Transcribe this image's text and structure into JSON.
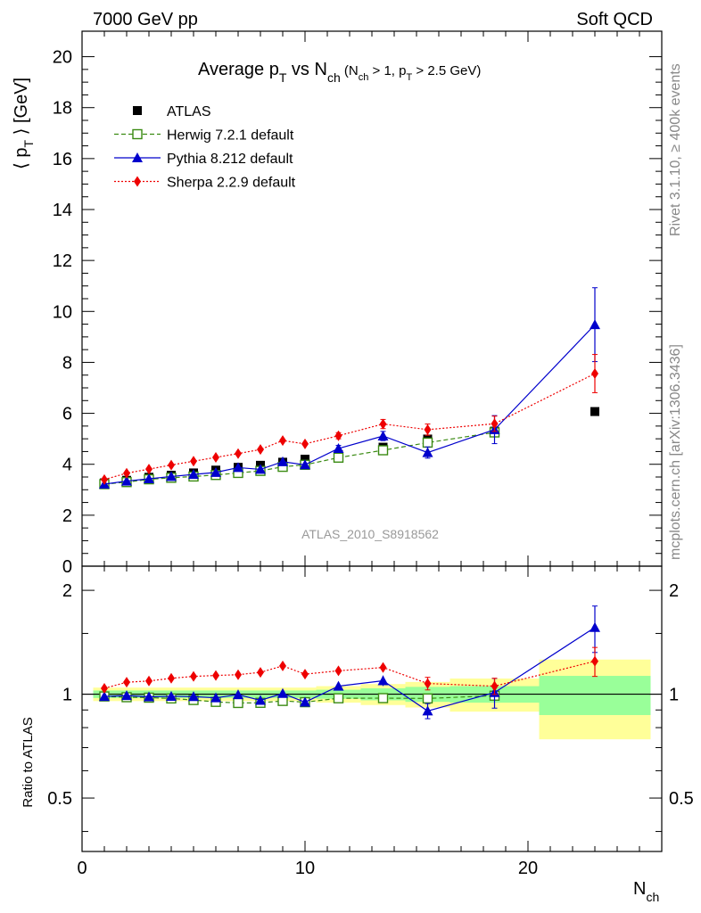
{
  "header": {
    "left": "7000 GeV pp",
    "right": "Soft QCD"
  },
  "side_labels": {
    "rivet": "Rivet 3.1.10, ≥ 400k events",
    "mcplots": "mcplots.cern.ch [arXiv:1306.3436]"
  },
  "chart_data": [
    {
      "type": "scatter",
      "title": {
        "main_a": "Average p",
        "sub_a": "T",
        "main_b": " vs N",
        "sub_b": "ch",
        "paren_a": " (N",
        "paren_sub_a": "ch",
        "paren_b": " > 1, p",
        "paren_sub_b": "T",
        "paren_c": " > 2.5 GeV)"
      },
      "ylabel": {
        "pre": "⟨ p",
        "sub": "T",
        "post": " ⟩  [GeV]"
      },
      "xlabel": {
        "main": "N",
        "sub": "ch"
      },
      "watermark": "ATLAS_2010_S8918562",
      "xlim": [
        0,
        26
      ],
      "ylim": [
        0,
        21
      ],
      "xticks": [
        0,
        10,
        20
      ],
      "yticks": [
        0,
        2,
        4,
        6,
        8,
        10,
        12,
        14,
        16,
        18,
        20
      ],
      "legend_position": "top-left",
      "series": [
        {
          "name": "ATLAS",
          "color": "#000000",
          "marker": "square-filled",
          "line": "none",
          "x": [
            1,
            2,
            3,
            4,
            5,
            6,
            7,
            8,
            9,
            10,
            11.5,
            13.5,
            15.5,
            18.5,
            23
          ],
          "y": [
            3.27,
            3.37,
            3.49,
            3.57,
            3.66,
            3.77,
            3.88,
            3.96,
            4.08,
            4.2,
            4.38,
            4.67,
            4.99,
            5.3,
            6.07
          ]
        },
        {
          "name": "Herwig 7.2.1 default",
          "color": "#3a8a12",
          "marker": "square-open",
          "line": "dashed",
          "x": [
            1,
            2,
            3,
            4,
            5,
            6,
            7,
            8,
            9,
            10,
            11.5,
            13.5,
            15.5,
            18.5
          ],
          "y": [
            3.22,
            3.3,
            3.41,
            3.47,
            3.52,
            3.58,
            3.66,
            3.74,
            3.9,
            3.98,
            4.26,
            4.55,
            4.85,
            5.25
          ]
        },
        {
          "name": "Pythia 8.212 default",
          "color": "#0000cc",
          "marker": "triangle",
          "line": "solid",
          "x": [
            1,
            2,
            3,
            4,
            5,
            6,
            7,
            8,
            9,
            10,
            11.5,
            13.5,
            15.5,
            18.5,
            23
          ],
          "y": [
            3.22,
            3.34,
            3.43,
            3.52,
            3.6,
            3.68,
            3.87,
            3.8,
            4.1,
            3.98,
            4.62,
            5.11,
            4.46,
            5.36,
            9.48
          ],
          "err": [
            0.05,
            0.05,
            0.05,
            0.05,
            0.05,
            0.05,
            0.06,
            0.06,
            0.07,
            0.08,
            0.12,
            0.18,
            0.22,
            0.55,
            1.45
          ]
        },
        {
          "name": "Sherpa 2.2.9 default",
          "color": "#ee0000",
          "marker": "diamond",
          "line": "dotted",
          "x": [
            1,
            2,
            3,
            4,
            5,
            6,
            7,
            8,
            9,
            10,
            11.5,
            13.5,
            15.5,
            18.5,
            23
          ],
          "y": [
            3.4,
            3.65,
            3.81,
            3.97,
            4.12,
            4.27,
            4.42,
            4.58,
            4.93,
            4.8,
            5.12,
            5.58,
            5.36,
            5.59,
            7.56
          ],
          "err": [
            0.05,
            0.05,
            0.05,
            0.06,
            0.06,
            0.06,
            0.07,
            0.07,
            0.08,
            0.09,
            0.12,
            0.18,
            0.22,
            0.3,
            0.75
          ]
        }
      ]
    },
    {
      "type": "scatter",
      "ylabel": "Ratio to ATLAS",
      "yscale": "log",
      "xlim": [
        0,
        26
      ],
      "ylim": [
        0.35,
        2.35
      ],
      "yticks": [
        0.5,
        1,
        2
      ],
      "xticks": [
        0,
        10,
        20
      ],
      "bands": [
        {
          "x0": 0.5,
          "x1": 10.5,
          "inner": 0.025,
          "outer": 0.045
        },
        {
          "x0": 10.5,
          "x1": 12.5,
          "inner": 0.03,
          "outer": 0.055
        },
        {
          "x0": 12.5,
          "x1": 14.5,
          "inner": 0.04,
          "outer": 0.07
        },
        {
          "x0": 14.5,
          "x1": 16.5,
          "inner": 0.05,
          "outer": 0.085
        },
        {
          "x0": 16.5,
          "x1": 20.5,
          "inner": 0.055,
          "outer": 0.11
        },
        {
          "x0": 20.5,
          "x1": 25.5,
          "inner": 0.13,
          "outer": 0.26
        }
      ],
      "reference_line": 1,
      "series": [
        {
          "name": "Herwig 7.2.1 default",
          "color": "#3a8a12",
          "marker": "square-open",
          "line": "dashed",
          "x": [
            1,
            2,
            3,
            4,
            5,
            6,
            7,
            8,
            9,
            10,
            11.5,
            13.5,
            15.5,
            18.5
          ],
          "y": [
            0.985,
            0.98,
            0.977,
            0.972,
            0.962,
            0.95,
            0.943,
            0.944,
            0.956,
            0.948,
            0.973,
            0.974,
            0.972,
            0.99
          ]
        },
        {
          "name": "Pythia 8.212 default",
          "color": "#0000cc",
          "marker": "triangle",
          "line": "solid",
          "x": [
            1,
            2,
            3,
            4,
            5,
            6,
            7,
            8,
            9,
            10,
            11.5,
            13.5,
            15.5,
            18.5,
            23
          ],
          "y": [
            0.985,
            0.991,
            0.983,
            0.986,
            0.984,
            0.976,
            0.997,
            0.96,
            1.005,
            0.948,
            1.055,
            1.094,
            0.894,
            1.011,
            1.561
          ],
          "err": [
            0.015,
            0.015,
            0.015,
            0.015,
            0.015,
            0.015,
            0.016,
            0.016,
            0.018,
            0.02,
            0.027,
            0.038,
            0.045,
            0.1,
            0.24
          ]
        },
        {
          "name": "Sherpa 2.2.9 default",
          "color": "#ee0000",
          "marker": "diamond",
          "line": "dotted",
          "x": [
            1,
            2,
            3,
            4,
            5,
            6,
            7,
            8,
            9,
            10,
            11.5,
            13.5,
            15.5,
            18.5,
            23
          ],
          "y": [
            1.04,
            1.083,
            1.092,
            1.112,
            1.126,
            1.133,
            1.139,
            1.157,
            1.208,
            1.143,
            1.169,
            1.195,
            1.074,
            1.055,
            1.246
          ],
          "err": [
            0.015,
            0.015,
            0.015,
            0.016,
            0.016,
            0.016,
            0.017,
            0.017,
            0.019,
            0.021,
            0.027,
            0.038,
            0.045,
            0.057,
            0.12
          ]
        }
      ]
    }
  ]
}
